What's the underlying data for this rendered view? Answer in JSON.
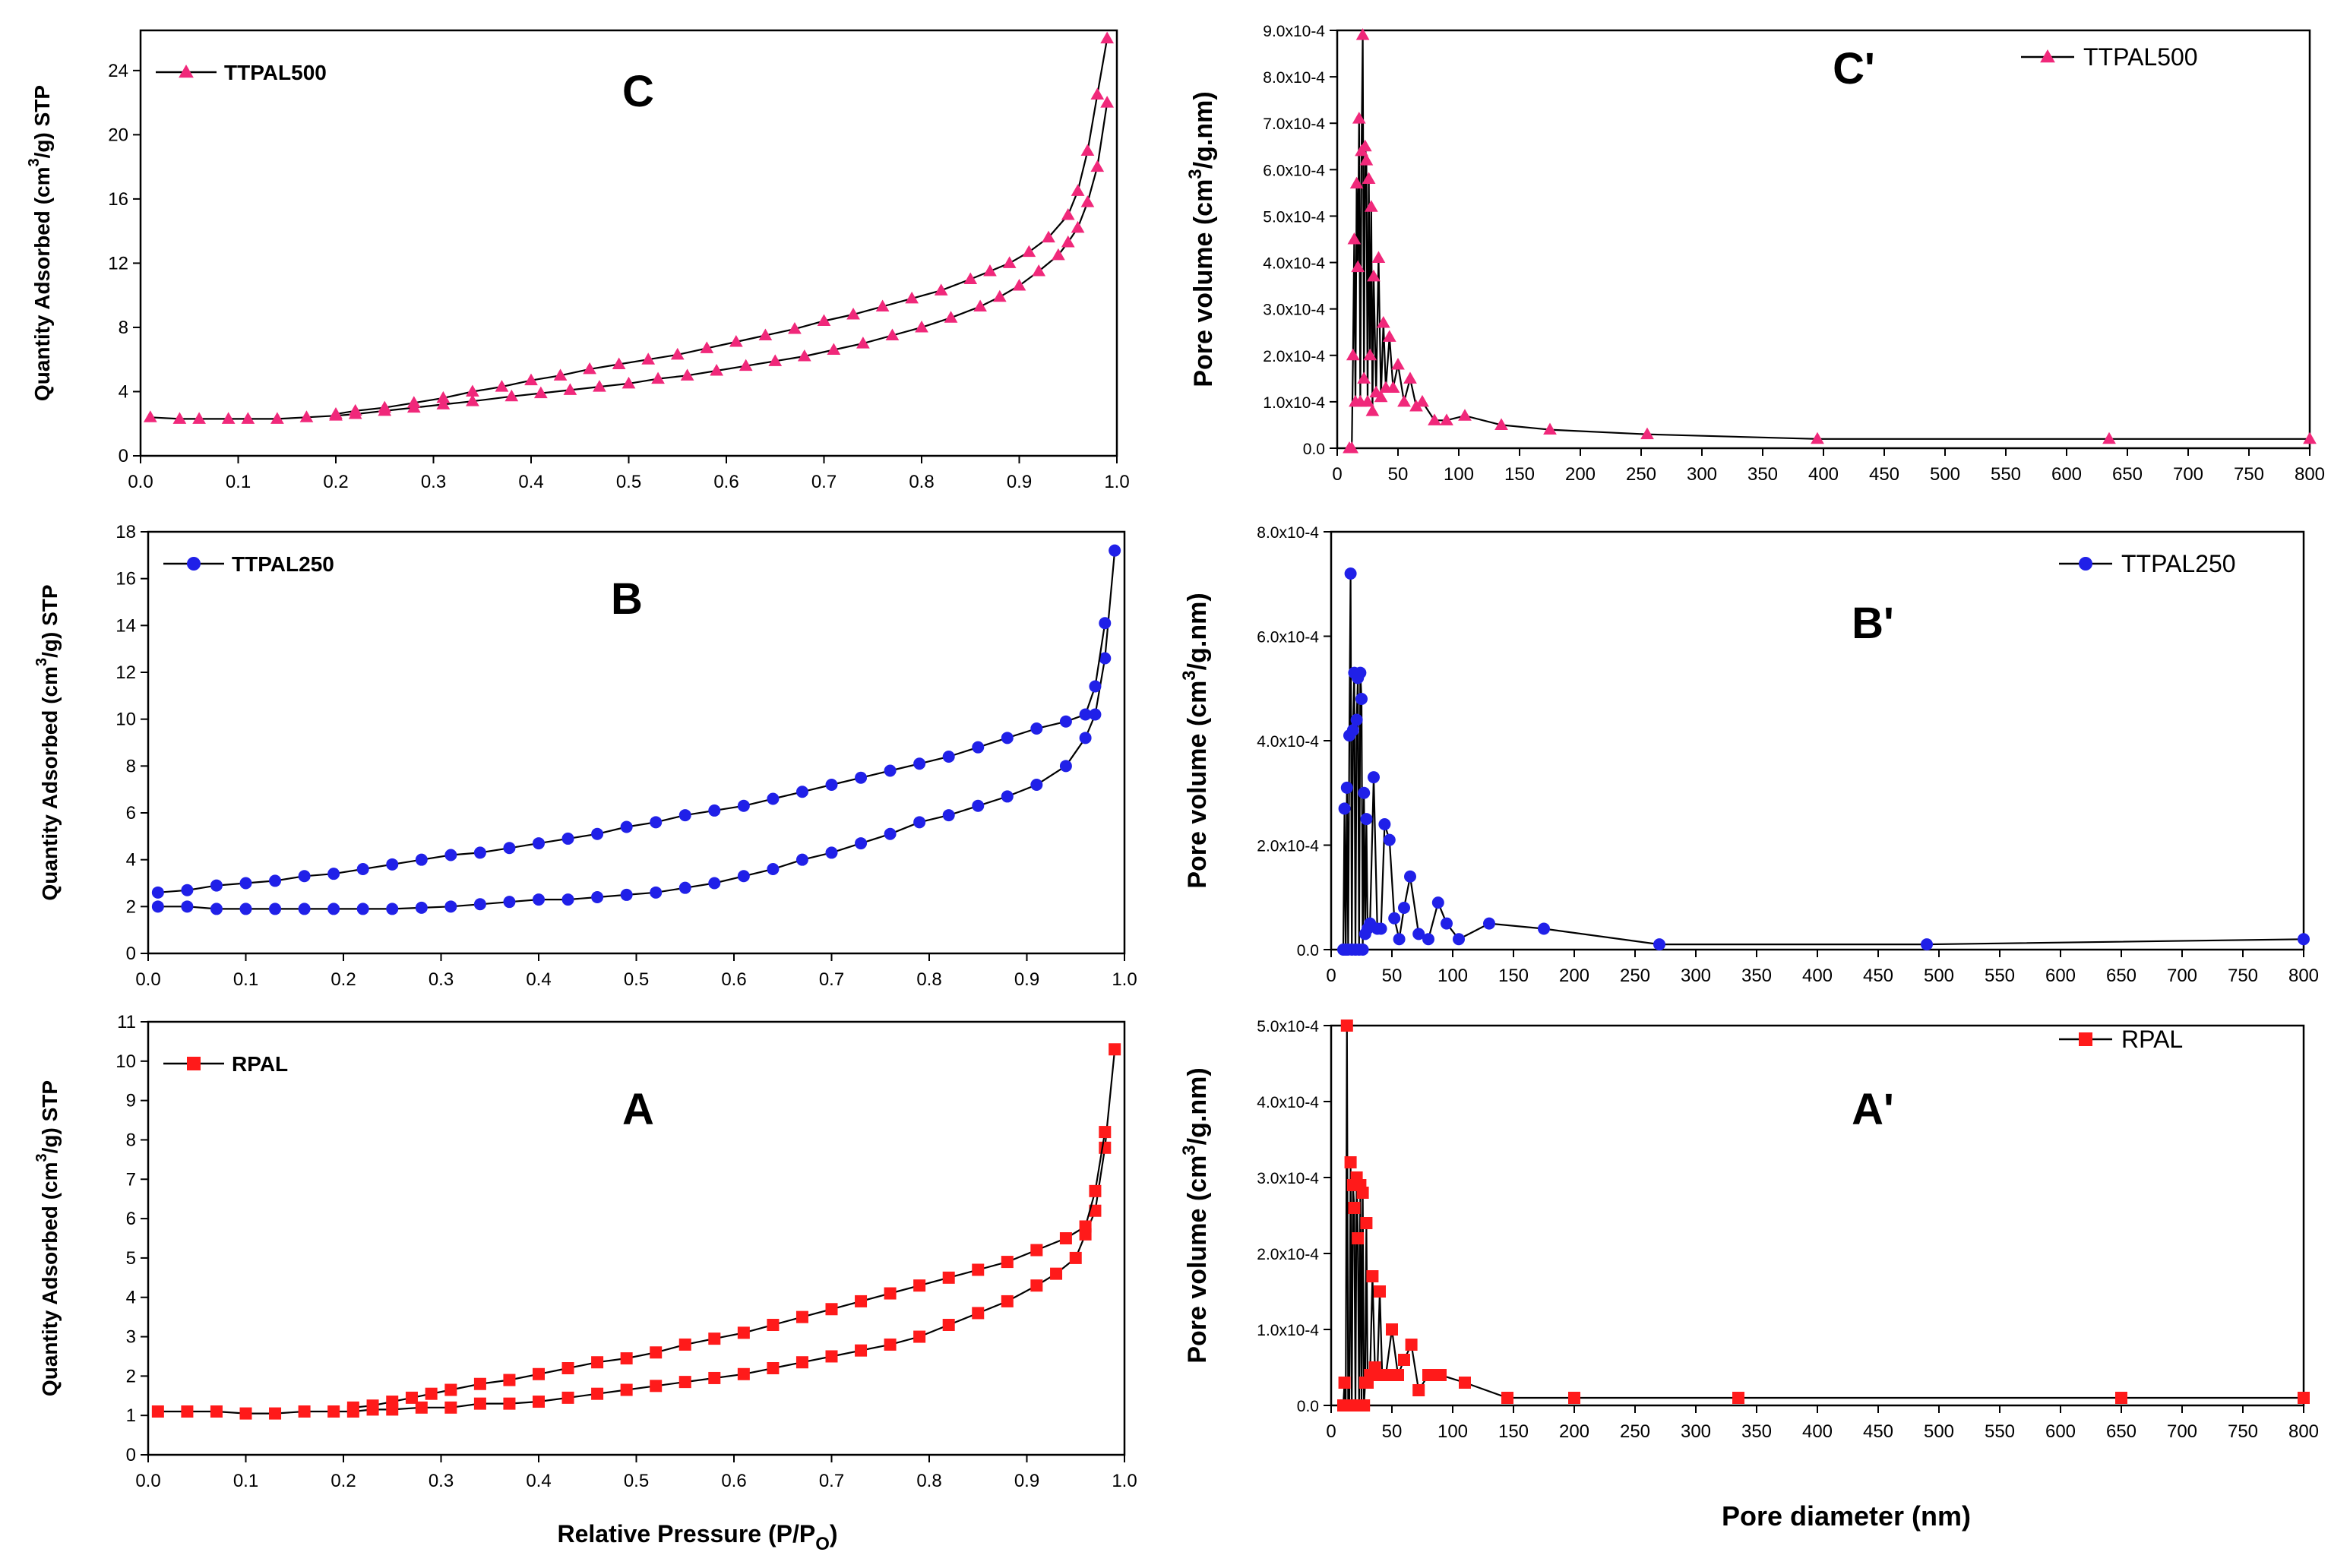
{
  "figure_labels": {
    "x_title_left": "Relative Pressure (P/P",
    "x_title_left_sub": "O",
    "x_title_left_end": ")",
    "x_title_right": "Pore diameter (nm)"
  },
  "chart_data": [
    {
      "id": "C",
      "type": "line",
      "panel_label": "C",
      "legend": "TTPAL500",
      "marker": "triangle",
      "color": "#f0287a",
      "ylabel_a": "Quantity Adsorbed (cm",
      "ylabel_sup": "3",
      "ylabel_b": "/g) STP",
      "xlim": [
        0,
        1
      ],
      "ylim": [
        0,
        26.5
      ],
      "xticks": [
        0,
        0.1,
        0.2,
        0.3,
        0.4,
        0.5,
        0.6,
        0.7,
        0.8,
        0.9,
        1.0
      ],
      "xticklabels": [
        "0.0",
        "0.1",
        "0.2",
        "0.3",
        "0.4",
        "0.5",
        "0.6",
        "0.7",
        "0.8",
        "0.9",
        "1.0"
      ],
      "yticks": [
        0,
        4,
        8,
        12,
        16,
        20,
        24
      ],
      "yticklabels": [
        "0",
        "4",
        "8",
        "12",
        "16",
        "20",
        "24"
      ],
      "series": [
        {
          "name": "adsorption",
          "x": [
            0.01,
            0.04,
            0.06,
            0.09,
            0.11,
            0.14,
            0.17,
            0.2,
            0.22,
            0.25,
            0.28,
            0.31,
            0.34,
            0.38,
            0.41,
            0.44,
            0.47,
            0.5,
            0.53,
            0.56,
            0.59,
            0.62,
            0.65,
            0.68,
            0.71,
            0.74,
            0.77,
            0.8,
            0.83,
            0.86,
            0.88,
            0.9,
            0.92,
            0.94,
            0.95,
            0.96,
            0.97,
            0.98,
            0.99
          ],
          "y": [
            2.4,
            2.3,
            2.3,
            2.3,
            2.3,
            2.3,
            2.4,
            2.5,
            2.6,
            2.8,
            3.0,
            3.2,
            3.4,
            3.7,
            3.9,
            4.1,
            4.3,
            4.5,
            4.8,
            5.0,
            5.3,
            5.6,
            5.9,
            6.2,
            6.6,
            7.0,
            7.5,
            8.0,
            8.6,
            9.3,
            9.9,
            10.6,
            11.5,
            12.5,
            13.3,
            14.2,
            15.8,
            18.0,
            22.0
          ]
        },
        {
          "name": "desorption",
          "x": [
            0.99,
            0.98,
            0.97,
            0.96,
            0.95,
            0.93,
            0.91,
            0.89,
            0.87,
            0.85,
            0.82,
            0.79,
            0.76,
            0.73,
            0.7,
            0.67,
            0.64,
            0.61,
            0.58,
            0.55,
            0.52,
            0.49,
            0.46,
            0.43,
            0.4,
            0.37,
            0.34,
            0.31,
            0.28,
            0.25,
            0.22,
            0.2
          ],
          "y": [
            26.0,
            22.5,
            19.0,
            16.5,
            15.0,
            13.6,
            12.7,
            12.0,
            11.5,
            11.0,
            10.3,
            9.8,
            9.3,
            8.8,
            8.4,
            7.9,
            7.5,
            7.1,
            6.7,
            6.3,
            6.0,
            5.7,
            5.4,
            5.0,
            4.7,
            4.3,
            4.0,
            3.6,
            3.3,
            3.0,
            2.8,
            2.6
          ]
        }
      ]
    },
    {
      "id": "C'",
      "type": "line",
      "panel_label": "C'",
      "legend": "TTPAL500",
      "marker": "triangle",
      "color": "#f0287a",
      "ylabel_a": "Pore volume (cm",
      "ylabel_sup": "3",
      "ylabel_b": "/g.nm)",
      "xlim": [
        0,
        800
      ],
      "ylim": [
        0,
        9.0
      ],
      "xticks": [
        0,
        50,
        100,
        150,
        200,
        250,
        300,
        350,
        400,
        450,
        500,
        550,
        600,
        650,
        700,
        750,
        800
      ],
      "xticklabels": [
        "0",
        "50",
        "100",
        "150",
        "200",
        "250",
        "300",
        "350",
        "400",
        "450",
        "500",
        "550",
        "600",
        "650",
        "700",
        "750",
        "800"
      ],
      "yticks": [
        0,
        1,
        2,
        3,
        4,
        5,
        6,
        7,
        8,
        9
      ],
      "yticklabels": [
        "0.0",
        "1.0x10-4",
        "2.0x10-4",
        "3.0x10-4",
        "4.0x10-4",
        "5.0x10-4",
        "6.0x10-4",
        "7.0x10-4",
        "8.0x10-4",
        "9.0x10-4"
      ],
      "series": [
        {
          "name": "TTPAL500",
          "x": [
            10,
            12,
            13,
            14,
            15,
            16,
            17,
            18,
            19,
            20,
            21,
            22,
            23,
            24,
            25,
            26,
            27,
            28,
            29,
            30,
            32,
            34,
            36,
            38,
            40,
            43,
            46,
            50,
            55,
            60,
            65,
            70,
            80,
            90,
            105,
            135,
            175,
            255,
            395,
            635,
            800
          ],
          "y": [
            0,
            0,
            2,
            4.5,
            1,
            5.7,
            3.9,
            7.1,
            1,
            6.4,
            8.9,
            1.5,
            6.5,
            6.2,
            1,
            5.8,
            2,
            5.2,
            0.8,
            3.7,
            1.2,
            4.1,
            1.1,
            2.7,
            1.3,
            2.4,
            1.3,
            1.8,
            1.0,
            1.5,
            0.9,
            1.0,
            0.6,
            0.6,
            0.7,
            0.5,
            0.4,
            0.3,
            0.2,
            0.2,
            0.2
          ]
        }
      ]
    },
    {
      "id": "B",
      "type": "line",
      "panel_label": "B",
      "legend": "TTPAL250",
      "marker": "circle",
      "color": "#2020e8",
      "ylabel_a": "Quantity Adsorbed (cm",
      "ylabel_sup": "3",
      "ylabel_b": "/g) STP",
      "xlim": [
        0,
        1
      ],
      "ylim": [
        0,
        18
      ],
      "xticks": [
        0,
        0.1,
        0.2,
        0.3,
        0.4,
        0.5,
        0.6,
        0.7,
        0.8,
        0.9,
        1.0
      ],
      "xticklabels": [
        "0.0",
        "0.1",
        "0.2",
        "0.3",
        "0.4",
        "0.5",
        "0.6",
        "0.7",
        "0.8",
        "0.9",
        "1.0"
      ],
      "yticks": [
        0,
        2,
        4,
        6,
        8,
        10,
        12,
        14,
        16,
        18
      ],
      "yticklabels": [
        "0",
        "2",
        "4",
        "6",
        "8",
        "10",
        "12",
        "14",
        "16",
        "18"
      ],
      "series": [
        {
          "name": "adsorption",
          "x": [
            0.01,
            0.04,
            0.07,
            0.1,
            0.13,
            0.16,
            0.19,
            0.22,
            0.25,
            0.28,
            0.31,
            0.34,
            0.37,
            0.4,
            0.43,
            0.46,
            0.49,
            0.52,
            0.55,
            0.58,
            0.61,
            0.64,
            0.67,
            0.7,
            0.73,
            0.76,
            0.79,
            0.82,
            0.85,
            0.88,
            0.91,
            0.94,
            0.96,
            0.97,
            0.98,
            0.99
          ],
          "y": [
            2.0,
            2.0,
            1.9,
            1.9,
            1.9,
            1.9,
            1.9,
            1.9,
            1.9,
            1.95,
            2.0,
            2.1,
            2.2,
            2.3,
            2.3,
            2.4,
            2.5,
            2.6,
            2.8,
            3.0,
            3.3,
            3.6,
            4.0,
            4.3,
            4.7,
            5.1,
            5.6,
            5.9,
            6.3,
            6.7,
            7.2,
            8.0,
            9.2,
            10.2,
            12.6,
            17.2
          ]
        },
        {
          "name": "desorption",
          "x": [
            0.98,
            0.97,
            0.96,
            0.94,
            0.91,
            0.88,
            0.85,
            0.82,
            0.79,
            0.76,
            0.73,
            0.7,
            0.67,
            0.64,
            0.61,
            0.58,
            0.55,
            0.52,
            0.49,
            0.46,
            0.43,
            0.4,
            0.37,
            0.34,
            0.31,
            0.28,
            0.25,
            0.22,
            0.19,
            0.16,
            0.13,
            0.1,
            0.07,
            0.04,
            0.01
          ],
          "y": [
            14.1,
            11.4,
            10.2,
            9.9,
            9.6,
            9.2,
            8.8,
            8.4,
            8.1,
            7.8,
            7.5,
            7.2,
            6.9,
            6.6,
            6.3,
            6.1,
            5.9,
            5.6,
            5.4,
            5.1,
            4.9,
            4.7,
            4.5,
            4.3,
            4.2,
            4.0,
            3.8,
            3.6,
            3.4,
            3.3,
            3.1,
            3.0,
            2.9,
            2.7,
            2.6
          ]
        }
      ]
    },
    {
      "id": "B'",
      "type": "line",
      "panel_label": "B'",
      "legend": "TTPAL250",
      "marker": "circle",
      "color": "#2020e8",
      "ylabel_a": "Pore volume (cm",
      "ylabel_sup": "3",
      "ylabel_b": "/g.nm)",
      "xlim": [
        0,
        800
      ],
      "ylim": [
        0,
        8.0
      ],
      "xticks": [
        0,
        50,
        100,
        150,
        200,
        250,
        300,
        350,
        400,
        450,
        500,
        550,
        600,
        650,
        700,
        750,
        800
      ],
      "xticklabels": [
        "0",
        "50",
        "100",
        "150",
        "200",
        "250",
        "300",
        "350",
        "400",
        "450",
        "500",
        "550",
        "600",
        "650",
        "700",
        "750",
        "800"
      ],
      "yticks": [
        0,
        2,
        4,
        6,
        8
      ],
      "yticklabels": [
        "0.0",
        "2.0x10-4",
        "4.0x10-4",
        "6.0x10-4",
        "8.0x10-4"
      ],
      "series": [
        {
          "name": "TTPAL250",
          "x": [
            10,
            11,
            12,
            13,
            14,
            15,
            16,
            17,
            18,
            19,
            20,
            21,
            22,
            23,
            24,
            25,
            26,
            27,
            28,
            29,
            30,
            32,
            35,
            38,
            41,
            44,
            48,
            52,
            56,
            60,
            65,
            72,
            80,
            88,
            95,
            105,
            130,
            175,
            270,
            490,
            800
          ],
          "y": [
            0,
            2.7,
            0,
            3.1,
            0,
            4.1,
            7.2,
            0,
            4.2,
            5.3,
            0,
            4.4,
            5.2,
            0,
            5.3,
            4.8,
            0,
            3.0,
            0.3,
            2.5,
            0.4,
            0.5,
            3.3,
            0.4,
            0.4,
            2.4,
            2.1,
            0.6,
            0.2,
            0.8,
            1.4,
            0.3,
            0.2,
            0.9,
            0.5,
            0.2,
            0.5,
            0.4,
            0.1,
            0.1,
            0.2
          ]
        }
      ]
    },
    {
      "id": "A",
      "type": "line",
      "panel_label": "A",
      "legend": "RPAL",
      "marker": "square",
      "color": "#ff1a1a",
      "ylabel_a": "Quantity Adsorbed (cm",
      "ylabel_sup": "3",
      "ylabel_b": "/g) STP",
      "xlim": [
        0,
        1
      ],
      "ylim": [
        0,
        11
      ],
      "xticks": [
        0,
        0.1,
        0.2,
        0.3,
        0.4,
        0.5,
        0.6,
        0.7,
        0.8,
        0.9,
        1.0
      ],
      "xticklabels": [
        "0.0",
        "0.1",
        "0.2",
        "0.3",
        "0.4",
        "0.5",
        "0.6",
        "0.7",
        "0.8",
        "0.9",
        "1.0"
      ],
      "yticks": [
        0,
        1,
        2,
        3,
        4,
        5,
        6,
        7,
        8,
        9,
        10,
        11
      ],
      "yticklabels": [
        "0",
        "1",
        "2",
        "3",
        "4",
        "5",
        "6",
        "7",
        "8",
        "9",
        "10",
        "11"
      ],
      "series": [
        {
          "name": "adsorption",
          "x": [
            0.01,
            0.04,
            0.07,
            0.1,
            0.13,
            0.16,
            0.19,
            0.21,
            0.23,
            0.25,
            0.28,
            0.31,
            0.34,
            0.37,
            0.4,
            0.43,
            0.46,
            0.49,
            0.52,
            0.55,
            0.58,
            0.61,
            0.64,
            0.67,
            0.7,
            0.73,
            0.76,
            0.79,
            0.82,
            0.85,
            0.88,
            0.91,
            0.93,
            0.95,
            0.96,
            0.97,
            0.98,
            0.99
          ],
          "y": [
            1.1,
            1.1,
            1.1,
            1.05,
            1.05,
            1.1,
            1.1,
            1.1,
            1.15,
            1.15,
            1.2,
            1.2,
            1.3,
            1.3,
            1.35,
            1.45,
            1.55,
            1.65,
            1.75,
            1.85,
            1.95,
            2.05,
            2.2,
            2.35,
            2.5,
            2.65,
            2.8,
            3.0,
            3.3,
            3.6,
            3.9,
            4.3,
            4.6,
            5.0,
            5.6,
            6.2,
            7.8,
            10.3
          ]
        },
        {
          "name": "desorption",
          "x": [
            0.98,
            0.97,
            0.96,
            0.94,
            0.91,
            0.88,
            0.85,
            0.82,
            0.79,
            0.76,
            0.73,
            0.7,
            0.67,
            0.64,
            0.61,
            0.58,
            0.55,
            0.52,
            0.49,
            0.46,
            0.43,
            0.4,
            0.37,
            0.34,
            0.31,
            0.29,
            0.27,
            0.25,
            0.23,
            0.21
          ],
          "y": [
            8.2,
            6.7,
            5.8,
            5.5,
            5.2,
            4.9,
            4.7,
            4.5,
            4.3,
            4.1,
            3.9,
            3.7,
            3.5,
            3.3,
            3.1,
            2.95,
            2.8,
            2.6,
            2.45,
            2.35,
            2.2,
            2.05,
            1.9,
            1.8,
            1.65,
            1.55,
            1.45,
            1.35,
            1.25,
            1.2
          ]
        }
      ]
    },
    {
      "id": "A'",
      "type": "line",
      "panel_label": "A'",
      "legend": "RPAL",
      "marker": "square",
      "color": "#ff1a1a",
      "ylabel_a": "Pore volume (cm",
      "ylabel_sup": "3",
      "ylabel_b": "/g.nm)",
      "xlim": [
        0,
        800
      ],
      "ylim": [
        0,
        5.0
      ],
      "xticks": [
        0,
        50,
        100,
        150,
        200,
        250,
        300,
        350,
        400,
        450,
        500,
        550,
        600,
        650,
        700,
        750,
        800
      ],
      "xticklabels": [
        "0",
        "50",
        "100",
        "150",
        "200",
        "250",
        "300",
        "350",
        "400",
        "450",
        "500",
        "550",
        "600",
        "650",
        "700",
        "750",
        "800"
      ],
      "yticks": [
        0,
        1,
        2,
        3,
        4,
        5
      ],
      "yticklabels": [
        "0.0",
        "1.0x10-4",
        "2.0x10-4",
        "3.0x10-4",
        "4.0x10-4",
        "5.0x10-4"
      ],
      "series": [
        {
          "name": "RPAL",
          "x": [
            10,
            11,
            12,
            13,
            14,
            15,
            16,
            17,
            18,
            19,
            20,
            21,
            22,
            23,
            24,
            25,
            26,
            27,
            28,
            29,
            30,
            32,
            34,
            36,
            38,
            40,
            42,
            45,
            50,
            55,
            60,
            66,
            72,
            80,
            90,
            110,
            145,
            200,
            335,
            650,
            800
          ],
          "y": [
            0,
            0.3,
            0,
            5.0,
            0,
            0,
            3.2,
            0,
            2.9,
            2.6,
            0,
            3.0,
            2.2,
            0,
            2.9,
            0,
            2.8,
            0,
            0.3,
            2.4,
            0.3,
            0.4,
            1.7,
            0.5,
            0.4,
            1.5,
            0.4,
            0.4,
            1.0,
            0.4,
            0.6,
            0.8,
            0.2,
            0.4,
            0.4,
            0.3,
            0.1,
            0.1,
            0.1,
            0.1,
            0.1
          ]
        }
      ]
    }
  ]
}
